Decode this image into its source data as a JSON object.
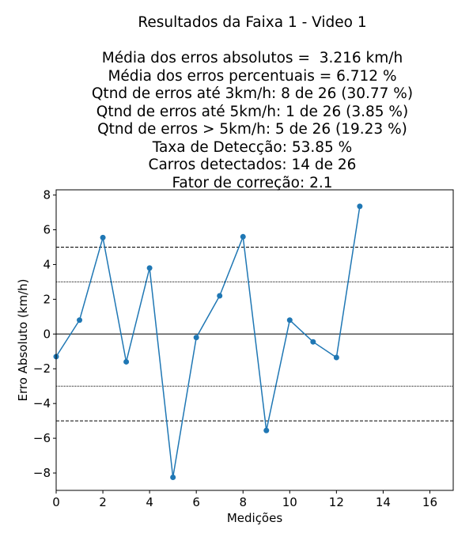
{
  "chart_data": {
    "type": "line",
    "title_lines": [
      "Resultados da Faixa 1 - Video 1",
      "",
      "Média dos erros absolutos =  3.216 km/h",
      "Média dos erros percentuais = 6.712 %",
      "Qtnd de erros até 3km/h: 8 de 26 (30.77 %)",
      "Qtnd de erros até 5km/h: 1 de 26 (3.85 %)",
      "Qtnd de erros > 5km/h: 5 de 26 (19.23 %)",
      "Taxa de Detecção: 53.85 %",
      "Carros detectados: 14 de 26",
      "Fator de correção: 2.1"
    ],
    "xlabel": "Medições",
    "ylabel": "Erro Absoluto (km/h)",
    "xlim": [
      0,
      17
    ],
    "ylim": [
      -9,
      8.3
    ],
    "xticks": [
      0,
      2,
      4,
      6,
      8,
      10,
      12,
      14,
      16
    ],
    "yticks": [
      -8,
      -6,
      -4,
      -2,
      0,
      2,
      4,
      6,
      8
    ],
    "grid": false,
    "series": [
      {
        "color": "#1f77b4",
        "x": [
          0,
          1,
          2,
          3,
          4,
          5,
          6,
          7,
          8,
          9,
          10,
          11,
          12,
          13
        ],
        "y": [
          -1.3,
          0.8,
          5.55,
          -1.6,
          3.8,
          -8.25,
          -0.2,
          2.2,
          5.6,
          -5.55,
          0.8,
          -0.45,
          -1.35,
          7.35
        ]
      }
    ],
    "reference_lines": [
      {
        "y": 0,
        "style": "solid"
      },
      {
        "y": 3,
        "style": "dotted"
      },
      {
        "y": -3,
        "style": "dotted"
      },
      {
        "y": 5,
        "style": "dashed"
      },
      {
        "y": -5,
        "style": "dashed"
      }
    ]
  }
}
